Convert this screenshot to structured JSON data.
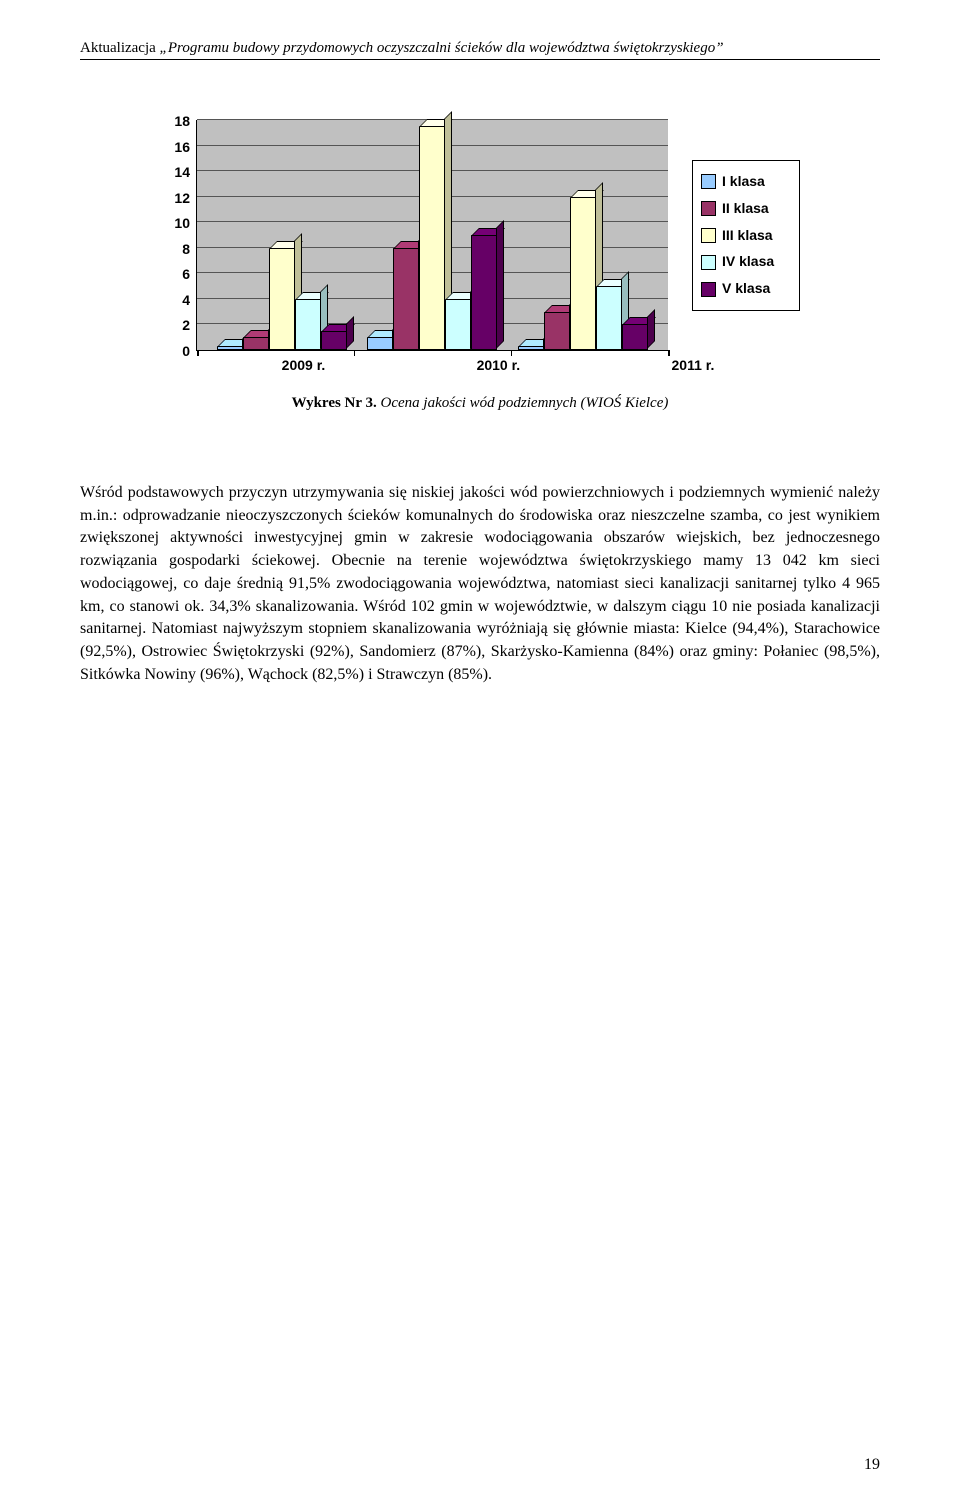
{
  "running_head": {
    "prefix": "Aktualizacja ",
    "title": "„Programu budowy przydomowych oczyszczalni ścieków dla województwa świętokrzyskiego”"
  },
  "chart": {
    "type": "bar",
    "categories": [
      "2009 r.",
      "2010 r.",
      "2011 r."
    ],
    "series": [
      {
        "name": "I klasa",
        "color": "#99ccff",
        "values": [
          0.3,
          1.0,
          0.3
        ]
      },
      {
        "name": "II klasa",
        "color": "#993366",
        "values": [
          1.0,
          8.0,
          3.0
        ]
      },
      {
        "name": "III klasa",
        "color": "#ffffcc",
        "values": [
          8.0,
          17.5,
          12.0
        ]
      },
      {
        "name": "IV klasa",
        "color": "#ccffff",
        "values": [
          4.0,
          4.0,
          5.0
        ]
      },
      {
        "name": "V klasa",
        "color": "#660066",
        "values": [
          1.5,
          9.0,
          2.0
        ]
      }
    ],
    "ylim": [
      0,
      18
    ],
    "ytick_step": 2,
    "grid_lines": [
      2,
      4,
      6,
      8,
      10,
      12,
      14,
      16,
      18
    ],
    "plot_bg": "#c0c0c0"
  },
  "caption": {
    "label": "Wykres Nr 3.",
    "text": " Ocena jakości wód podziemnych (WIOŚ Kielce)"
  },
  "body": "Wśród podstawowych przyczyn utrzymywania się niskiej jakości wód powierzchniowych i podziemnych wymienić należy m.in.: odprowadzanie nieoczyszczonych ścieków komunalnych do środowiska oraz nieszczelne szamba, co jest wynikiem zwiększonej aktywności inwestycyjnej gmin w zakresie wodociągowania obszarów wiejskich, bez jednoczesnego rozwiązania gospodarki ściekowej. Obecnie na terenie województwa świętokrzyskiego mamy 13 042 km sieci wodociągowej, co daje średnią 91,5% zwodociągowania województwa, natomiast sieci kanalizacji sanitarnej tylko 4 965 km, co stanowi ok. 34,3% skanalizowania. Wśród 102 gmin w województwie, w dalszym ciągu 10 nie posiada kanalizacji sanitarnej. Natomiast najwyższym stopniem skanalizowania wyróżniają się głównie miasta: Kielce (94,4%), Starachowice (92,5%), Ostrowiec Świętokrzyski (92%), Sandomierz (87%), Skarżysko-Kamienna (84%) oraz gminy: Połaniec (98,5%), Sitkówka Nowiny (96%), Wąchock (82,5%) i Strawczyn (85%).",
  "page_number": "19"
}
